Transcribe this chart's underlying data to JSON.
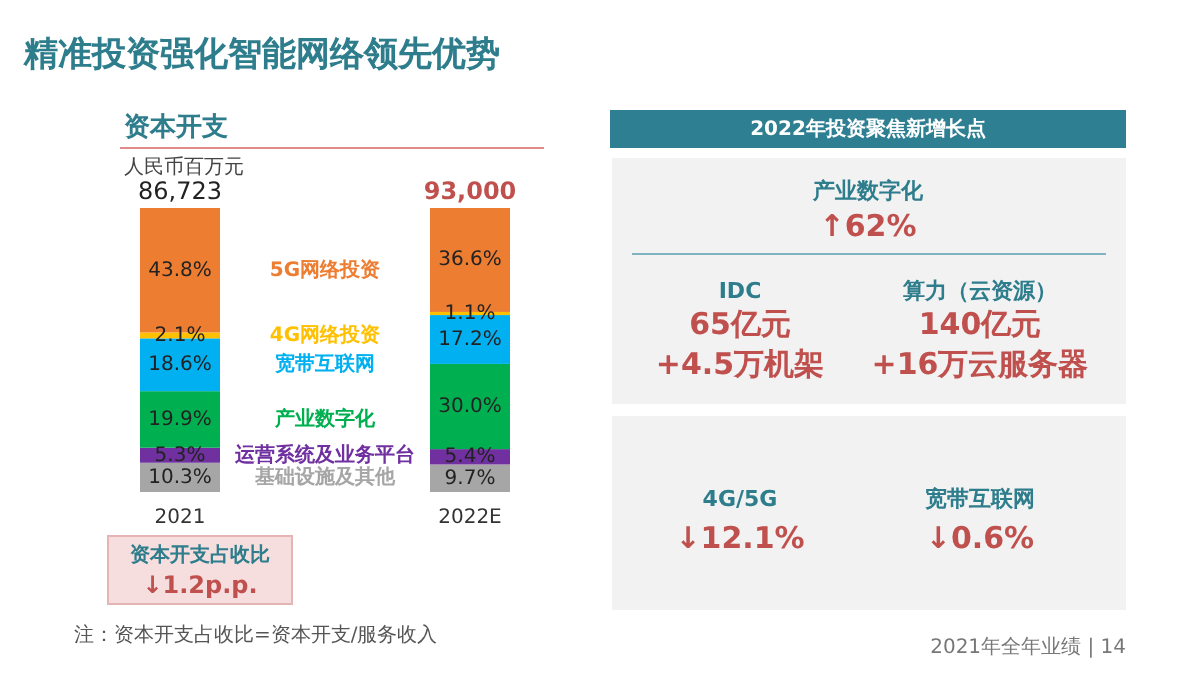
{
  "chart_data": [
    {
      "type": "bar",
      "stacked": true,
      "legend": false,
      "title": "资本开支",
      "subtitle": "人民币百万元",
      "categories": [
        "2021",
        "2022E"
      ],
      "series": [
        {
          "name": "基础设施及其他",
          "color": "#a6a6a6",
          "values": [
            10.3,
            9.7
          ],
          "value_labels": [
            "10.3%",
            "9.7%"
          ]
        },
        {
          "name": "运营系统及业务平台",
          "color": "#7030a0",
          "values": [
            5.3,
            5.4
          ],
          "value_labels": [
            "5.3%",
            "5.4%"
          ]
        },
        {
          "name": "产业数字化",
          "color": "#00b050",
          "values": [
            19.9,
            30.0
          ],
          "value_labels": [
            "19.9%",
            "30.0%"
          ]
        },
        {
          "name": "宽带互联网",
          "color": "#00b0f0",
          "values": [
            18.6,
            17.2
          ],
          "value_labels": [
            "18.6%",
            "17.2%"
          ]
        },
        {
          "name": "4G网络投资",
          "color": "#ffc000",
          "values": [
            2.1,
            1.1
          ],
          "value_labels": [
            "2.1%",
            "1.1%"
          ]
        },
        {
          "name": "5G网络投资",
          "color": "#ed7d31",
          "values": [
            43.8,
            36.6
          ],
          "value_labels": [
            "43.8%",
            "36.6%"
          ]
        }
      ],
      "annotations": [
        "精准投资强化智能网络领先优势",
        "资本开支占收比",
        "↓1.2p.p.",
        "注：资本开支占收比=资本开支/服务收入",
        "2021年全年业绩 | 14",
        {
          "text": "86,723",
          "x": "2021",
          "y": 100
        },
        {
          "text": "93,000",
          "x": "2022E",
          "y": 100
        }
      ]
    },
    {
      "type": "other",
      "title": "2022年投资聚焦新增长点",
      "annotations": [
        "产业数字化",
        "↑62%",
        "IDC",
        "65亿元",
        "+4.5万机架",
        "算力（云资源）",
        "140亿元",
        "+16万云服务器",
        "4G/5G",
        "↓12.1%",
        "宽带互联网",
        "↓0.6%"
      ]
    }
  ]
}
